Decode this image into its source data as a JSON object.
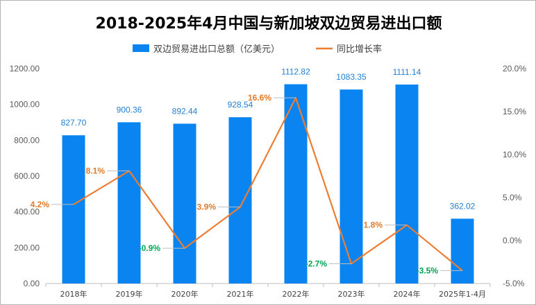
{
  "chart_data": {
    "type": "bar",
    "title": "2018-2025年4月中国与新加坡双边贸易进出口额",
    "categories": [
      "2018年",
      "2019年",
      "2020年",
      "2021年",
      "2022年",
      "2023年",
      "2024年",
      "2025年1-4月"
    ],
    "series": [
      {
        "name": "双边贸易进出口总额（亿美元）",
        "type": "bar",
        "axis": "left",
        "values": [
          827.7,
          900.36,
          892.44,
          928.54,
          1112.82,
          1083.35,
          1111.14,
          362.02
        ],
        "labels": [
          "827.70",
          "900.36",
          "892.44",
          "928.54",
          "1112.82",
          "1083.35",
          "1111.14",
          "362.02"
        ]
      },
      {
        "name": "同比增长率",
        "type": "line",
        "axis": "right",
        "values": [
          4.2,
          8.1,
          -0.9,
          3.9,
          16.6,
          -2.7,
          1.8,
          -3.5
        ],
        "labels": [
          "4.2%",
          "8.1%",
          "-0.9%",
          "3.9%",
          "16.6%",
          "-2.7%",
          "1.8%",
          "-3.5%"
        ]
      }
    ],
    "y_left": {
      "min": 0,
      "max": 1200,
      "step": 200,
      "ticks": [
        "0.00",
        "200.00",
        "400.00",
        "600.00",
        "800.00",
        "1000.00",
        "1200.00"
      ]
    },
    "y_right": {
      "min": -5,
      "max": 20,
      "step": 5,
      "ticks": [
        "-5.0%",
        "0.0%",
        "5.0%",
        "10.0%",
        "15.0%",
        "20.0%"
      ]
    },
    "legend_position": "top",
    "grid": false
  },
  "colors": {
    "bar": "#0a84f0",
    "bar_label": "#1f7fd6",
    "line": "#ed7d31",
    "positive_label": "#e07b2a",
    "negative_label": "#00a651",
    "axis": "#bfbfbf"
  }
}
